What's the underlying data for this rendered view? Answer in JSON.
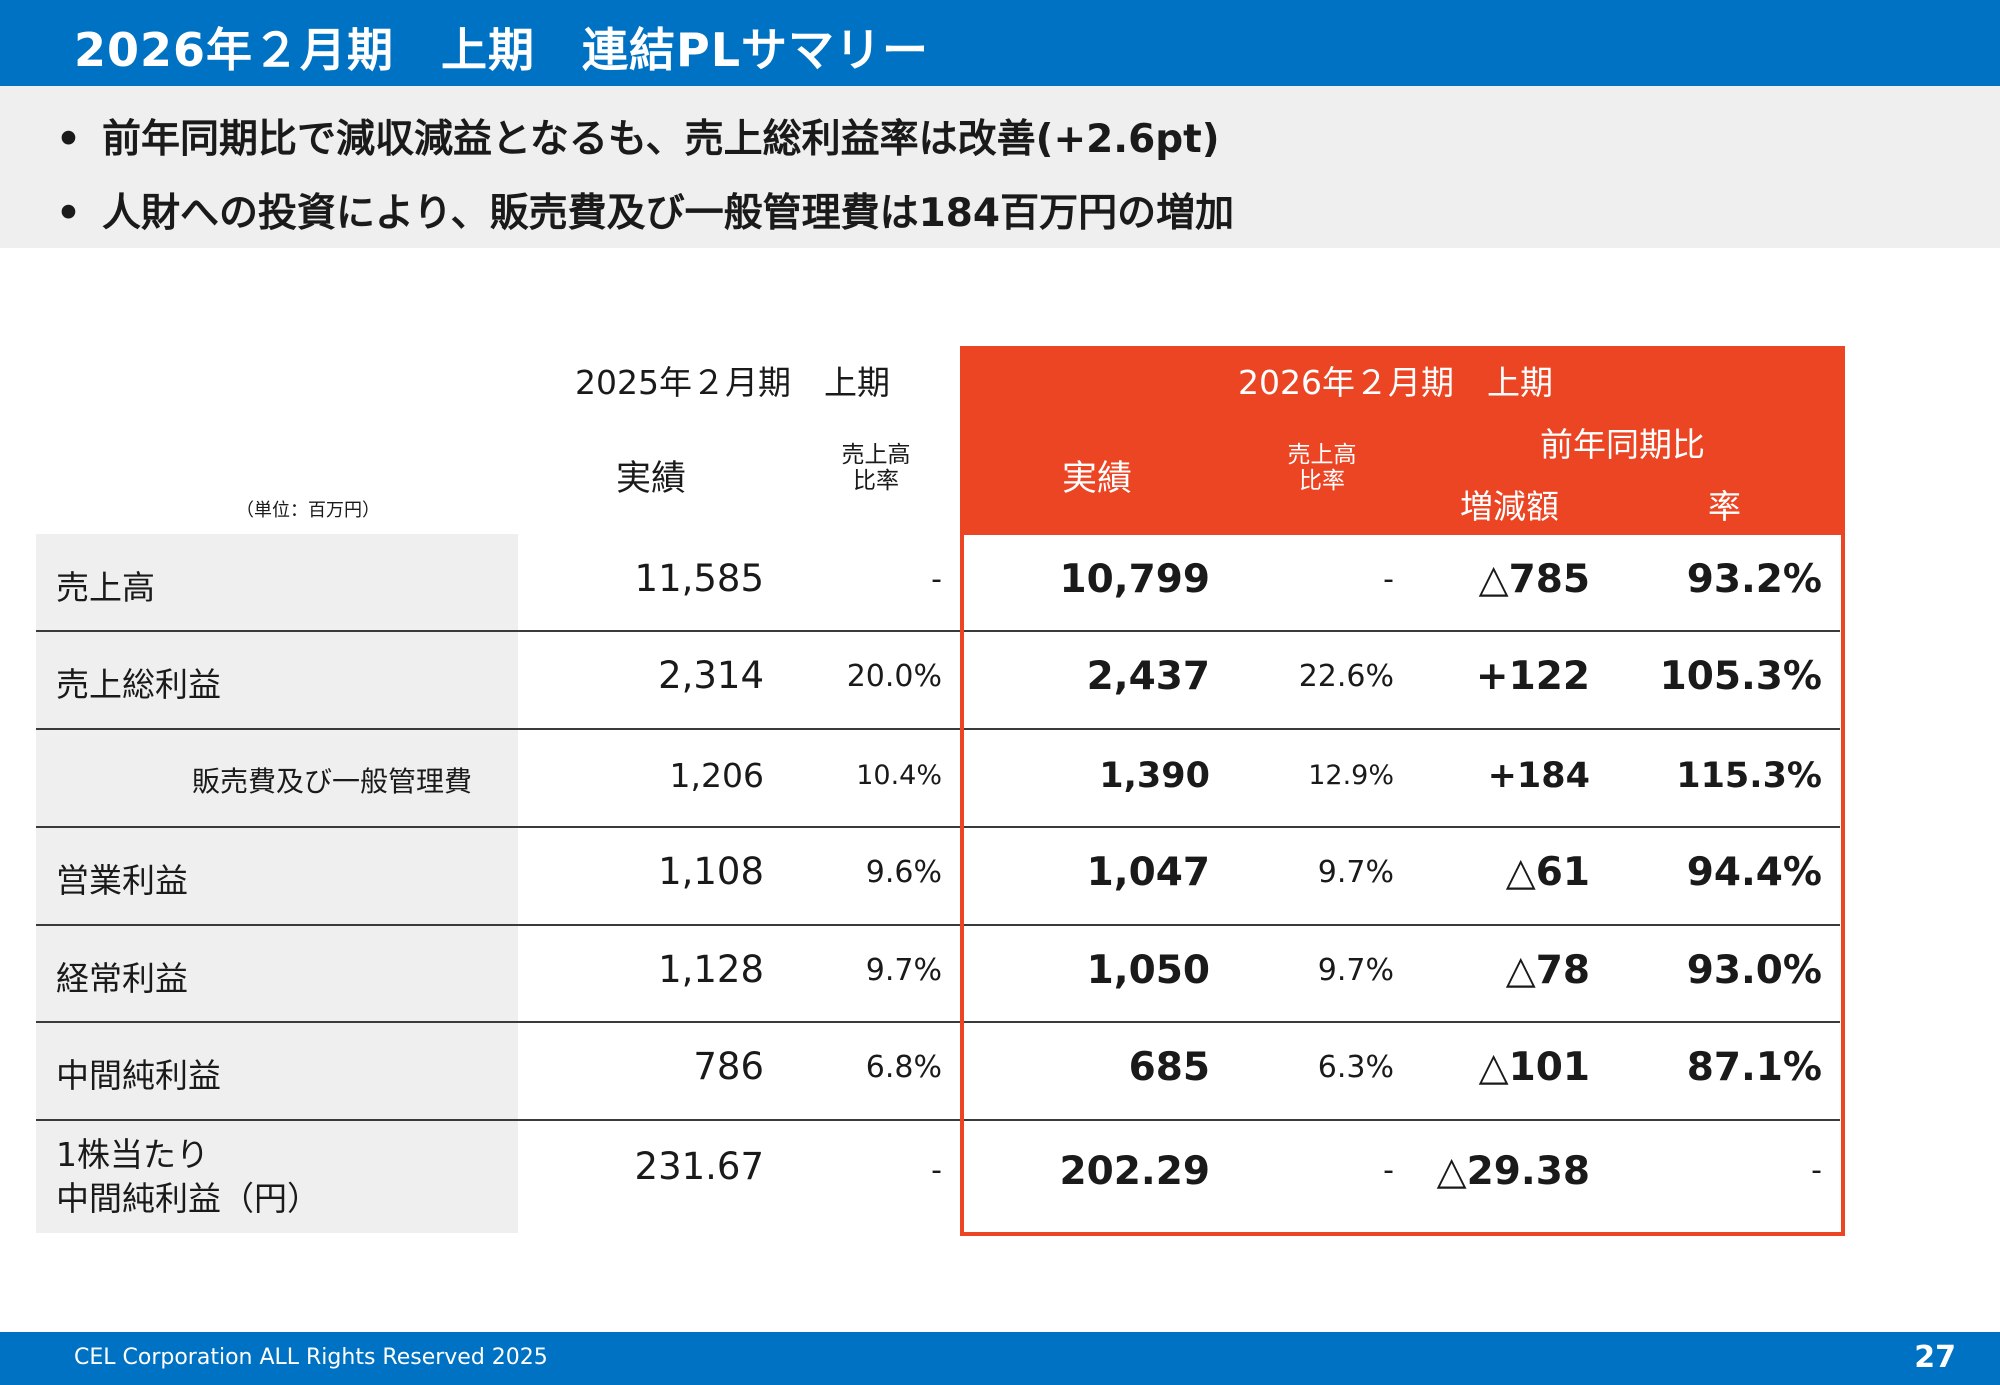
{
  "title": "2026年２月期　上期　連結PLサマリー",
  "bullets": {
    "dot": "•",
    "items": [
      "前年同期比で減収減益となるも、売上総利益率は改善(+2.6pt)",
      "人財への投資により、販売費及び一般管理費は184百万円の増加"
    ]
  },
  "table": {
    "unit": "（単位：百万円）",
    "prev_period": "2025年２月期　上期",
    "cur_period": "2026年２月期　上期",
    "yoy": "前年同期比",
    "col_actual": "実績",
    "col_ratio_line1": "売上高",
    "col_ratio_line2": "比率",
    "col_change": "増減額",
    "col_rate": "率",
    "rows": [
      {
        "label": "売上高",
        "prev": "11,585",
        "prev_ratio": "-",
        "cur": "10,799",
        "cur_ratio": "-",
        "change": "△785",
        "rate": "93.2%"
      },
      {
        "label": "売上総利益",
        "prev": "2,314",
        "prev_ratio": "20.0%",
        "cur": "2,437",
        "cur_ratio": "22.6%",
        "change": "+122",
        "rate": "105.3%"
      },
      {
        "label": "販売費及び一般管理費",
        "prev": "1,206",
        "prev_ratio": "10.4%",
        "cur": "1,390",
        "cur_ratio": "12.9%",
        "change": "+184",
        "rate": "115.3%"
      },
      {
        "label": "営業利益",
        "prev": "1,108",
        "prev_ratio": "9.6%",
        "cur": "1,047",
        "cur_ratio": "9.7%",
        "change": "△61",
        "rate": "94.4%"
      },
      {
        "label": "経常利益",
        "prev": "1,128",
        "prev_ratio": "9.7%",
        "cur": "1,050",
        "cur_ratio": "9.7%",
        "change": "△78",
        "rate": "93.0%"
      },
      {
        "label": "中間純利益",
        "prev": "786",
        "prev_ratio": "6.8%",
        "cur": "685",
        "cur_ratio": "6.3%",
        "change": "△101",
        "rate": "87.1%"
      },
      {
        "label_line1": "1株当たり",
        "label_line2": "中間純利益（円）",
        "prev": "231.67",
        "prev_ratio": "-",
        "cur": "202.29",
        "cur_ratio": "-",
        "change": "△29.38",
        "rate": "-"
      }
    ]
  },
  "footer": {
    "copyright": "CEL Corporation ALL Rights Reserved 2025",
    "page": "27"
  },
  "colors": {
    "brand_blue": "#0072c3",
    "accent_red": "#ec4524",
    "label_bg": "#efefef"
  }
}
